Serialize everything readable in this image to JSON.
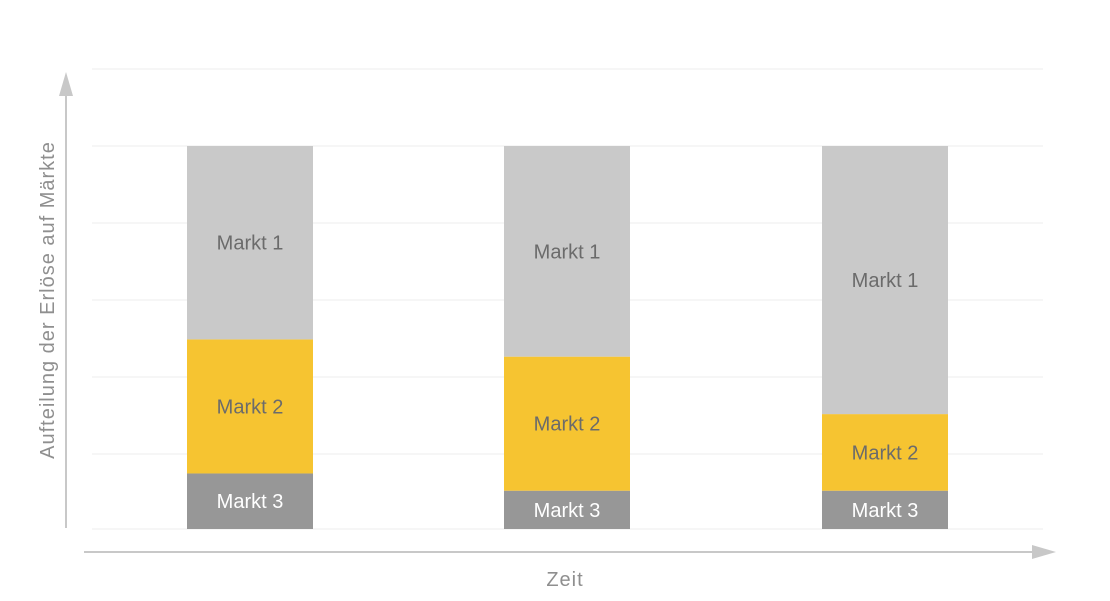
{
  "chart_data": {
    "type": "bar",
    "stacked": true,
    "categories": [
      "",
      "",
      ""
    ],
    "xlabel": "Zeit",
    "ylabel": "Aufteilung der Erlöse auf Märkte",
    "ylim": [
      0,
      100
    ],
    "grid": true,
    "series": [
      {
        "name": "Markt 3",
        "color": "#979797",
        "label_color": "#ffffff",
        "values": [
          14.5,
          10,
          10
        ]
      },
      {
        "name": "Markt 2",
        "color": "#f6c431",
        "label_color": "#6b6b6b",
        "values": [
          35,
          35,
          20
        ]
      },
      {
        "name": "Markt 1",
        "color": "#c9c9c9",
        "label_color": "#6b6b6b",
        "values": [
          50.5,
          55,
          70
        ]
      }
    ]
  }
}
